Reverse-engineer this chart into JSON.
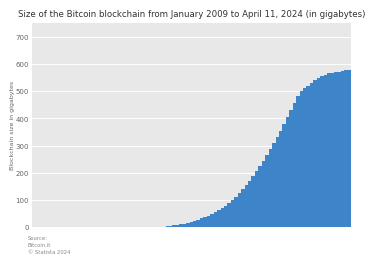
{
  "title": "Size of the Bitcoin blockchain from January 2009 to April 11, 2024 (in gigabytes)",
  "ylabel": "Blockchain size in gigabytes",
  "bar_color": "#3d85c8",
  "background_color": "#ffffff",
  "plot_bg_color": "#e8e8e8",
  "ylim": [
    0,
    750
  ],
  "yticks": [
    0,
    100,
    200,
    300,
    400,
    500,
    600,
    700
  ],
  "ytick_labels": [
    "0",
    "100",
    "200",
    "300",
    "400",
    "500",
    "600",
    "700"
  ],
  "source_text": "Source:\nBitcoin.it\n© Statista 2024",
  "values": [
    0.0,
    0.0,
    0.0,
    0.0,
    0.0,
    0.0,
    0.0,
    0.0,
    0.0,
    0.0,
    0.0,
    0.0,
    0.0,
    0.0,
    0.0,
    0.0,
    0.0,
    0.0,
    0.0,
    0.0,
    0.0,
    0.0,
    0.0,
    0.0,
    0.0,
    0.0,
    0.0,
    0.0,
    0.0,
    0.0,
    0.0,
    0.0,
    0.0,
    0.0,
    0.0,
    0.0,
    0.5,
    1.0,
    1.5,
    2.5,
    4.0,
    6.0,
    8.0,
    10.5,
    13.0,
    16.0,
    19.0,
    23.0,
    27.0,
    32.0,
    37.0,
    42.0,
    48.0,
    55.0,
    62.0,
    70.0,
    79.0,
    89.0,
    100.0,
    112.0,
    125.0,
    139.0,
    154.0,
    170.0,
    187.0,
    205.0,
    224.0,
    244.0,
    265.0,
    286.0,
    308.0,
    331.0,
    355.0,
    380.0,
    405.0,
    430.0,
    456.0,
    483.0,
    500.0,
    510.0,
    520.0,
    530.0,
    540.0,
    548.0,
    555.0,
    560.0,
    565.0,
    568.0,
    570.0,
    572.0,
    574.0,
    576.0,
    578.0
  ]
}
